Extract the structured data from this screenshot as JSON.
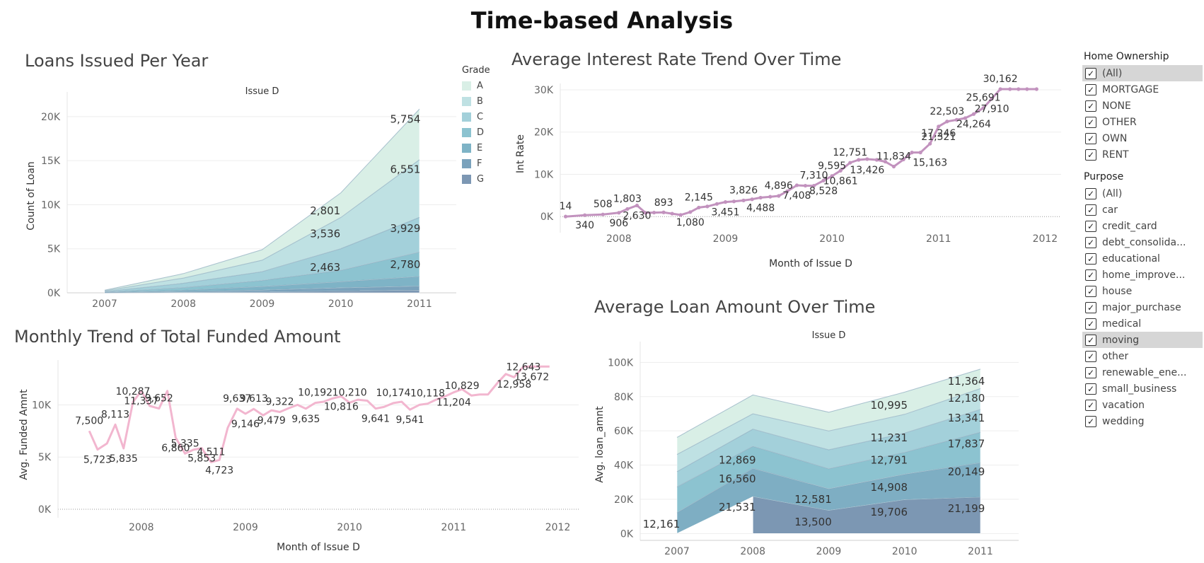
{
  "title": "Time-based Analysis",
  "filters": {
    "home_ownership": {
      "title": "Home Ownership",
      "items": [
        {
          "label": "(All)",
          "checked": true,
          "highlighted": true
        },
        {
          "label": "MORTGAGE",
          "checked": true
        },
        {
          "label": "NONE",
          "checked": true
        },
        {
          "label": "OTHER",
          "checked": true
        },
        {
          "label": "OWN",
          "checked": true
        },
        {
          "label": "RENT",
          "checked": true
        }
      ]
    },
    "purpose": {
      "title": "Purpose",
      "items": [
        {
          "label": "(All)",
          "checked": true
        },
        {
          "label": "car",
          "checked": true
        },
        {
          "label": "credit_card",
          "checked": true
        },
        {
          "label": "debt_consolida...",
          "checked": true
        },
        {
          "label": "educational",
          "checked": true
        },
        {
          "label": "home_improve...",
          "checked": true
        },
        {
          "label": "house",
          "checked": true
        },
        {
          "label": "major_purchase",
          "checked": true
        },
        {
          "label": "medical",
          "checked": true
        },
        {
          "label": "moving",
          "checked": true,
          "highlighted": true
        },
        {
          "label": "other",
          "checked": true
        },
        {
          "label": "renewable_ene...",
          "checked": true
        },
        {
          "label": "small_business",
          "checked": true
        },
        {
          "label": "vacation",
          "checked": true
        },
        {
          "label": "wedding",
          "checked": true
        }
      ]
    }
  },
  "chart_data": [
    {
      "id": "loans_per_year",
      "type": "area",
      "title": "Loans Issued Per Year",
      "subtitle": "Issue D",
      "ylabel": "Count of Loan",
      "xlabel": "",
      "x": [
        "2007",
        "2008",
        "2009",
        "2010",
        "2011"
      ],
      "ylim": [
        0,
        22000
      ],
      "yticks": [
        0,
        5000,
        10000,
        15000,
        20000
      ],
      "ytick_labels": [
        "0K",
        "5K",
        "10K",
        "15K",
        "20K"
      ],
      "stacked": true,
      "legend": {
        "title": "Grade",
        "position": "right"
      },
      "series": [
        {
          "name": "G",
          "color": "#7c97b3",
          "values": [
            5,
            50,
            100,
            200,
            300
          ]
        },
        {
          "name": "F",
          "color": "#7aa2bc",
          "values": [
            10,
            80,
            200,
            350,
            450
          ]
        },
        {
          "name": "E",
          "color": "#7eb3c6",
          "values": [
            20,
            150,
            400,
            700,
            1100
          ]
        },
        {
          "name": "D",
          "color": "#8cc3d0",
          "values": [
            40,
            300,
            700,
            1300,
            2780
          ]
        },
        {
          "name": "C",
          "color": "#a3d0da",
          "values": [
            60,
            500,
            1000,
            2463,
            3929
          ]
        },
        {
          "name": "B",
          "color": "#bfe1e3",
          "values": [
            80,
            600,
            1300,
            3536,
            6551
          ]
        },
        {
          "name": "A",
          "color": "#d9efe6",
          "values": [
            90,
            500,
            1200,
            2801,
            5754
          ]
        }
      ],
      "data_labels": [
        {
          "x": "2010",
          "text": "2,801",
          "at": 9300
        },
        {
          "x": "2010",
          "text": "3,536",
          "at": 6700
        },
        {
          "x": "2010",
          "text": "2,463",
          "at": 2900
        },
        {
          "x": "2011",
          "text": "5,754",
          "at": 19700
        },
        {
          "x": "2011",
          "text": "6,551",
          "at": 14000
        },
        {
          "x": "2011",
          "text": "3,929",
          "at": 7300
        },
        {
          "x": "2011",
          "text": "2,780",
          "at": 3200
        }
      ],
      "grid": true
    },
    {
      "id": "int_rate_trend",
      "type": "line",
      "title": "Average Interest Rate Trend Over Time",
      "xlabel": "Month of Issue D",
      "ylabel": "Int Rate",
      "xlim": [
        2007.45,
        2012.15
      ],
      "x_ticks": [
        2008,
        2009,
        2010,
        2011,
        2012
      ],
      "ylim": [
        -1800,
        31500
      ],
      "yticks": [
        0,
        10000,
        20000,
        30000
      ],
      "ytick_labels": [
        "0K",
        "10K",
        "20K",
        "30K"
      ],
      "color": "#c292be",
      "x": [
        2007.5,
        2007.68,
        2007.85,
        2008.0,
        2008.08,
        2008.17,
        2008.25,
        2008.33,
        2008.42,
        2008.5,
        2008.58,
        2008.67,
        2008.75,
        2008.83,
        2008.92,
        2009.0,
        2009.08,
        2009.17,
        2009.25,
        2009.33,
        2009.42,
        2009.5,
        2009.58,
        2009.67,
        2009.75,
        2009.83,
        2009.92,
        2010.0,
        2010.08,
        2010.17,
        2010.25,
        2010.33,
        2010.42,
        2010.5,
        2010.58,
        2010.67,
        2010.75,
        2010.83,
        2010.92,
        2011.0,
        2011.08,
        2011.17,
        2011.25,
        2011.33,
        2011.42,
        2011.5,
        2011.58,
        2011.67,
        2011.75,
        2011.83,
        2011.92
      ],
      "y": [
        14,
        340,
        508,
        906,
        1803,
        2630,
        893,
        950,
        1000,
        700,
        400,
        1080,
        2145,
        2400,
        3000,
        3451,
        3600,
        3826,
        4100,
        4488,
        4700,
        4896,
        6000,
        7408,
        7310,
        7310,
        8528,
        9595,
        10861,
        12751,
        13426,
        13600,
        13426,
        13000,
        11834,
        13500,
        15163,
        15163,
        17246,
        21321,
        22503,
        22900,
        23300,
        24264,
        25691,
        27910,
        30162,
        30162,
        30162,
        30162,
        30162
      ],
      "labels": [
        {
          "x": 2007.5,
          "y": 14,
          "text": "14"
        },
        {
          "x": 2007.68,
          "y": 340,
          "text": "340"
        },
        {
          "x": 2007.85,
          "y": 508,
          "text": "508"
        },
        {
          "x": 2008.0,
          "y": 906,
          "text": "906"
        },
        {
          "x": 2008.08,
          "y": 1803,
          "text": "1,803"
        },
        {
          "x": 2008.17,
          "y": 2630,
          "text": "2,630"
        },
        {
          "x": 2008.42,
          "y": 893,
          "text": "893"
        },
        {
          "x": 2008.67,
          "y": 1080,
          "text": "1,080"
        },
        {
          "x": 2008.75,
          "y": 2145,
          "text": "2,145"
        },
        {
          "x": 2009.0,
          "y": 3451,
          "text": "3,451"
        },
        {
          "x": 2009.17,
          "y": 3826,
          "text": "3,826"
        },
        {
          "x": 2009.33,
          "y": 4488,
          "text": "4,488"
        },
        {
          "x": 2009.5,
          "y": 4896,
          "text": "4,896"
        },
        {
          "x": 2009.67,
          "y": 7408,
          "text": "7,408"
        },
        {
          "x": 2009.83,
          "y": 7310,
          "text": "7,310"
        },
        {
          "x": 2009.92,
          "y": 8528,
          "text": "8,528"
        },
        {
          "x": 2010.0,
          "y": 9595,
          "text": "9,595"
        },
        {
          "x": 2010.08,
          "y": 10861,
          "text": "10,861"
        },
        {
          "x": 2010.17,
          "y": 12751,
          "text": "12,751"
        },
        {
          "x": 2010.33,
          "y": 13426,
          "text": "13,426"
        },
        {
          "x": 2010.58,
          "y": 11834,
          "text": "11,834"
        },
        {
          "x": 2010.92,
          "y": 15163,
          "text": "15,163"
        },
        {
          "x": 2011.0,
          "y": 17246,
          "text": "17,246"
        },
        {
          "x": 2011.0,
          "y": 21321,
          "text": "21,321"
        },
        {
          "x": 2011.08,
          "y": 22503,
          "text": "22,503"
        },
        {
          "x": 2011.33,
          "y": 24264,
          "text": "24,264"
        },
        {
          "x": 2011.42,
          "y": 25691,
          "text": "25,691"
        },
        {
          "x": 2011.5,
          "y": 27910,
          "text": "27,910"
        },
        {
          "x": 2011.58,
          "y": 30162,
          "text": "30,162"
        }
      ],
      "grid": true
    },
    {
      "id": "funded_amount_trend",
      "type": "line",
      "title": "Monthly Trend of Total Funded Amount",
      "xlabel": "Month of Issue D",
      "ylabel": "Avg. Funded Amnt",
      "xlim": [
        2007.2,
        2012.2
      ],
      "x_ticks": [
        2008,
        2009,
        2010,
        2011,
        2012
      ],
      "ylim": [
        0,
        14300
      ],
      "yticks": [
        0,
        5000,
        10000
      ],
      "ytick_labels": [
        "0K",
        "5K",
        "10K"
      ],
      "color": "#f2b6cf",
      "x": [
        2007.5,
        2007.58,
        2007.67,
        2007.75,
        2007.83,
        2007.92,
        2008.0,
        2008.08,
        2008.17,
        2008.25,
        2008.33,
        2008.42,
        2008.5,
        2008.58,
        2008.67,
        2008.75,
        2008.83,
        2008.92,
        2009.0,
        2009.08,
        2009.17,
        2009.25,
        2009.33,
        2009.42,
        2009.5,
        2009.58,
        2009.67,
        2009.75,
        2009.83,
        2009.92,
        2010.0,
        2010.08,
        2010.17,
        2010.25,
        2010.33,
        2010.42,
        2010.5,
        2010.58,
        2010.67,
        2010.75,
        2010.83,
        2010.92,
        2011.0,
        2011.08,
        2011.17,
        2011.25,
        2011.33,
        2011.42,
        2011.5,
        2011.58,
        2011.67,
        2011.75,
        2011.83,
        2011.92
      ],
      "y": [
        7500,
        5723,
        6300,
        8113,
        5835,
        10287,
        11337,
        9900,
        9652,
        11337,
        6860,
        5335,
        5700,
        5853,
        4511,
        4723,
        7800,
        9637,
        9146,
        9613,
        9000,
        9479,
        9322,
        9700,
        10000,
        9635,
        10192,
        10300,
        10600,
        10816,
        10210,
        10500,
        10400,
        9641,
        9800,
        10174,
        10300,
        9541,
        10000,
        10118,
        10500,
        10829,
        11204,
        11500,
        10900,
        11000,
        11000,
        12100,
        12958,
        12643,
        13672,
        13672,
        13672,
        13672
      ],
      "labels": [
        {
          "x": 2007.5,
          "y": 7500,
          "text": "7,500"
        },
        {
          "x": 2007.58,
          "y": 5723,
          "text": "5,723"
        },
        {
          "x": 2007.75,
          "y": 8113,
          "text": "8,113"
        },
        {
          "x": 2007.83,
          "y": 5835,
          "text": "5,835"
        },
        {
          "x": 2007.92,
          "y": 10287,
          "text": "10,287"
        },
        {
          "x": 2008.0,
          "y": 11337,
          "text": "11,337"
        },
        {
          "x": 2008.17,
          "y": 9652,
          "text": "9,652"
        },
        {
          "x": 2008.33,
          "y": 6860,
          "text": "6,860"
        },
        {
          "x": 2008.42,
          "y": 5335,
          "text": "5,335"
        },
        {
          "x": 2008.58,
          "y": 5853,
          "text": "5,853"
        },
        {
          "x": 2008.67,
          "y": 4511,
          "text": "4,511"
        },
        {
          "x": 2008.75,
          "y": 4723,
          "text": "4,723"
        },
        {
          "x": 2008.92,
          "y": 9637,
          "text": "9,637"
        },
        {
          "x": 2009.0,
          "y": 9146,
          "text": "9,146"
        },
        {
          "x": 2009.08,
          "y": 9613,
          "text": "9,613"
        },
        {
          "x": 2009.25,
          "y": 9479,
          "text": "9,479"
        },
        {
          "x": 2009.33,
          "y": 9322,
          "text": "9,322"
        },
        {
          "x": 2009.58,
          "y": 9635,
          "text": "9,635"
        },
        {
          "x": 2009.67,
          "y": 10192,
          "text": "10,192"
        },
        {
          "x": 2009.92,
          "y": 10816,
          "text": "10,816"
        },
        {
          "x": 2010.0,
          "y": 10210,
          "text": "10,210"
        },
        {
          "x": 2010.25,
          "y": 9641,
          "text": "9,641"
        },
        {
          "x": 2010.42,
          "y": 10174,
          "text": "10,174"
        },
        {
          "x": 2010.58,
          "y": 9541,
          "text": "9,541"
        },
        {
          "x": 2010.75,
          "y": 10118,
          "text": "10,118"
        },
        {
          "x": 2011.0,
          "y": 11204,
          "text": "11,204"
        },
        {
          "x": 2011.08,
          "y": 10829,
          "text": "10,829"
        },
        {
          "x": 2011.58,
          "y": 12958,
          "text": "12,958"
        },
        {
          "x": 2011.67,
          "y": 12643,
          "text": "12,643"
        },
        {
          "x": 2011.75,
          "y": 13672,
          "text": "13,672"
        }
      ],
      "grid": true
    },
    {
      "id": "loan_amount_trend",
      "type": "area",
      "title": "Average Loan Amount Over Time",
      "subtitle": "Issue D",
      "xlabel": "",
      "ylabel": "Avg. loan_amnt",
      "x": [
        "2007",
        "2008",
        "2009",
        "2010",
        "2011"
      ],
      "ylim": [
        -4000,
        108000
      ],
      "yticks": [
        0,
        20000,
        40000,
        60000,
        80000,
        100000
      ],
      "ytick_labels": [
        "0K",
        "20K",
        "40K",
        "60K",
        "80K",
        "100K"
      ],
      "stacked": true,
      "series": [
        {
          "name": "G",
          "color": "#7c97b3",
          "values": [
            null,
            21531,
            13500,
            19706,
            21199
          ]
        },
        {
          "name": "F",
          "color": "#7eaec3",
          "values": [
            12161,
            16560,
            12581,
            14908,
            20149
          ]
        },
        {
          "name": "E",
          "color": "#8cc3d0",
          "values": [
            15000,
            12869,
            11800,
            12791,
            17837
          ]
        },
        {
          "name": "D",
          "color": "#a3d0da",
          "values": [
            9000,
            10000,
            11000,
            11231,
            13341
          ]
        },
        {
          "name": "C",
          "color": "#bfe1e3",
          "values": [
            10000,
            9000,
            11000,
            10995,
            12180
          ]
        },
        {
          "name": "B",
          "color": "#d9efe6",
          "values": [
            10000,
            11000,
            11000,
            13000,
            11364
          ]
        }
      ],
      "data_labels": [
        {
          "x": "2007",
          "text": "12,161",
          "at": 5500
        },
        {
          "x": "2008",
          "text": "12,869",
          "at": 43000
        },
        {
          "x": "2008",
          "text": "16,560",
          "at": 32000
        },
        {
          "x": "2008",
          "text": "21,531",
          "at": 15500
        },
        {
          "x": "2009",
          "text": "12,581",
          "at": 20000
        },
        {
          "x": "2009",
          "text": "13,500",
          "at": 6800
        },
        {
          "x": "2010",
          "text": "10,995",
          "at": 75000
        },
        {
          "x": "2010",
          "text": "11,231",
          "at": 56000
        },
        {
          "x": "2010",
          "text": "12,791",
          "at": 43000
        },
        {
          "x": "2010",
          "text": "14,908",
          "at": 27000
        },
        {
          "x": "2010",
          "text": "19,706",
          "at": 12500
        },
        {
          "x": "2011",
          "text": "11,364",
          "at": 89000
        },
        {
          "x": "2011",
          "text": "12,180",
          "at": 79000
        },
        {
          "x": "2011",
          "text": "13,341",
          "at": 67500
        },
        {
          "x": "2011",
          "text": "17,837",
          "at": 52500
        },
        {
          "x": "2011",
          "text": "20,149",
          "at": 36000
        },
        {
          "x": "2011",
          "text": "21,199",
          "at": 14500
        }
      ],
      "grid": true
    }
  ]
}
